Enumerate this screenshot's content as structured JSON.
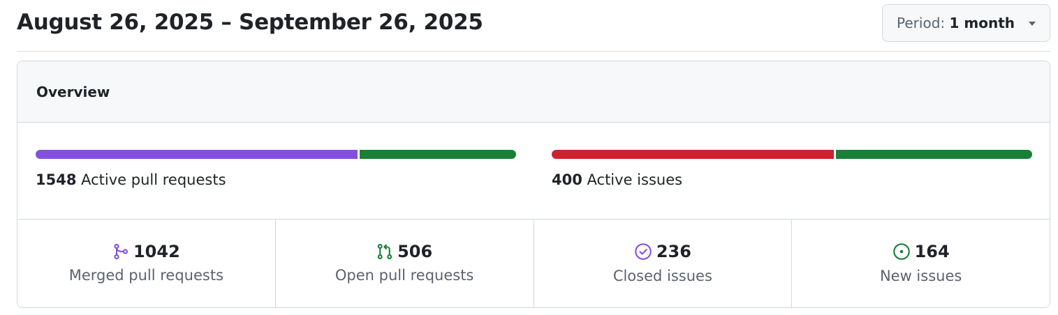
{
  "header": {
    "date_range": "August 26, 2025 – September 26, 2025",
    "period_prefix": "Period:",
    "period_value": "1 month"
  },
  "overview": {
    "title": "Overview",
    "pull_requests": {
      "active_count": "1548",
      "active_label": "Active pull requests",
      "merged_fraction": 0.673,
      "merged_color": "#8250df",
      "open_color": "#1a7f37"
    },
    "issues": {
      "active_count": "400",
      "active_label": "Active issues",
      "closed_fraction": 0.59,
      "closed_color": "#cf222e",
      "new_color": "#1a7f37"
    },
    "stats": [
      {
        "icon": "git-merge-icon",
        "color": "#8250df",
        "value": "1042",
        "label": "Merged pull requests"
      },
      {
        "icon": "git-pull-request-icon",
        "color": "#1a7f37",
        "value": "506",
        "label": "Open pull requests"
      },
      {
        "icon": "issue-closed-icon",
        "color": "#8250df",
        "value": "236",
        "label": "Closed issues"
      },
      {
        "icon": "issue-opened-icon",
        "color": "#1a7f37",
        "value": "164",
        "label": "New issues"
      }
    ]
  }
}
